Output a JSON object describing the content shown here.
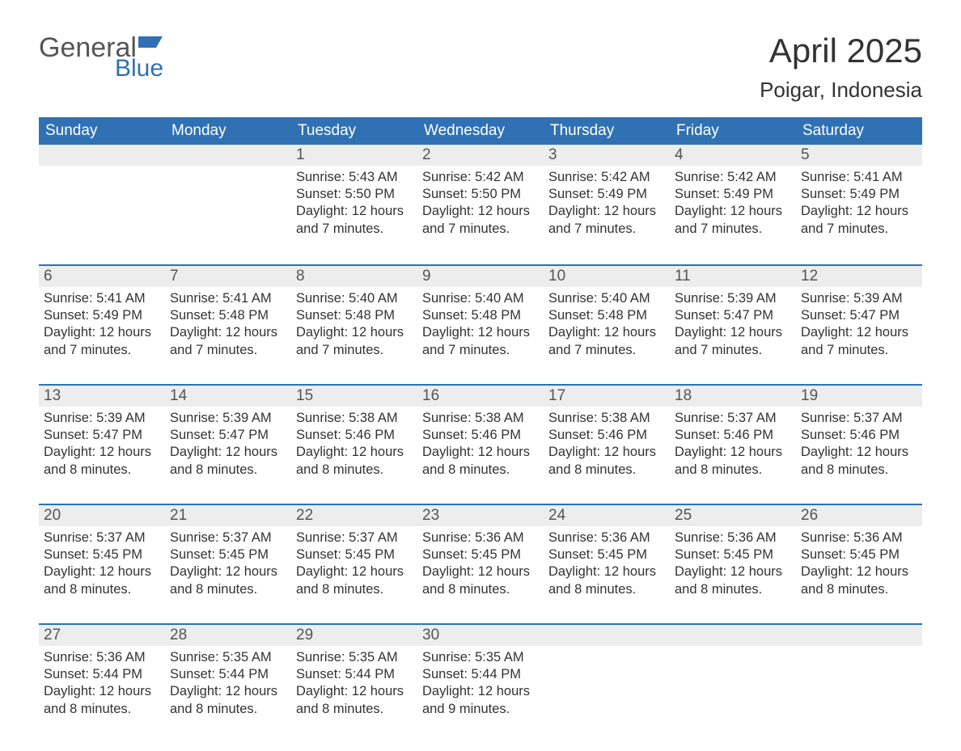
{
  "logo": {
    "word1": "General",
    "word2": "Blue"
  },
  "title": "April 2025",
  "location": "Poigar, Indonesia",
  "colors": {
    "header_bg": "#2f71b3",
    "header_text": "#ffffff",
    "daynum_bg": "#ededed",
    "border": "#2f71b3",
    "text": "#333333",
    "logo_gray": "#555555",
    "logo_blue": "#2f71b3"
  },
  "day_headers": [
    "Sunday",
    "Monday",
    "Tuesday",
    "Wednesday",
    "Thursday",
    "Friday",
    "Saturday"
  ],
  "labels": {
    "sunrise": "Sunrise:",
    "sunset": "Sunset:",
    "daylight": "Daylight:"
  },
  "weeks": [
    [
      null,
      null,
      {
        "n": "1",
        "sunrise": "5:43 AM",
        "sunset": "5:50 PM",
        "daylight": "12 hours and 7 minutes."
      },
      {
        "n": "2",
        "sunrise": "5:42 AM",
        "sunset": "5:50 PM",
        "daylight": "12 hours and 7 minutes."
      },
      {
        "n": "3",
        "sunrise": "5:42 AM",
        "sunset": "5:49 PM",
        "daylight": "12 hours and 7 minutes."
      },
      {
        "n": "4",
        "sunrise": "5:42 AM",
        "sunset": "5:49 PM",
        "daylight": "12 hours and 7 minutes."
      },
      {
        "n": "5",
        "sunrise": "5:41 AM",
        "sunset": "5:49 PM",
        "daylight": "12 hours and 7 minutes."
      }
    ],
    [
      {
        "n": "6",
        "sunrise": "5:41 AM",
        "sunset": "5:49 PM",
        "daylight": "12 hours and 7 minutes."
      },
      {
        "n": "7",
        "sunrise": "5:41 AM",
        "sunset": "5:48 PM",
        "daylight": "12 hours and 7 minutes."
      },
      {
        "n": "8",
        "sunrise": "5:40 AM",
        "sunset": "5:48 PM",
        "daylight": "12 hours and 7 minutes."
      },
      {
        "n": "9",
        "sunrise": "5:40 AM",
        "sunset": "5:48 PM",
        "daylight": "12 hours and 7 minutes."
      },
      {
        "n": "10",
        "sunrise": "5:40 AM",
        "sunset": "5:48 PM",
        "daylight": "12 hours and 7 minutes."
      },
      {
        "n": "11",
        "sunrise": "5:39 AM",
        "sunset": "5:47 PM",
        "daylight": "12 hours and 7 minutes."
      },
      {
        "n": "12",
        "sunrise": "5:39 AM",
        "sunset": "5:47 PM",
        "daylight": "12 hours and 7 minutes."
      }
    ],
    [
      {
        "n": "13",
        "sunrise": "5:39 AM",
        "sunset": "5:47 PM",
        "daylight": "12 hours and 8 minutes."
      },
      {
        "n": "14",
        "sunrise": "5:39 AM",
        "sunset": "5:47 PM",
        "daylight": "12 hours and 8 minutes."
      },
      {
        "n": "15",
        "sunrise": "5:38 AM",
        "sunset": "5:46 PM",
        "daylight": "12 hours and 8 minutes."
      },
      {
        "n": "16",
        "sunrise": "5:38 AM",
        "sunset": "5:46 PM",
        "daylight": "12 hours and 8 minutes."
      },
      {
        "n": "17",
        "sunrise": "5:38 AM",
        "sunset": "5:46 PM",
        "daylight": "12 hours and 8 minutes."
      },
      {
        "n": "18",
        "sunrise": "5:37 AM",
        "sunset": "5:46 PM",
        "daylight": "12 hours and 8 minutes."
      },
      {
        "n": "19",
        "sunrise": "5:37 AM",
        "sunset": "5:46 PM",
        "daylight": "12 hours and 8 minutes."
      }
    ],
    [
      {
        "n": "20",
        "sunrise": "5:37 AM",
        "sunset": "5:45 PM",
        "daylight": "12 hours and 8 minutes."
      },
      {
        "n": "21",
        "sunrise": "5:37 AM",
        "sunset": "5:45 PM",
        "daylight": "12 hours and 8 minutes."
      },
      {
        "n": "22",
        "sunrise": "5:37 AM",
        "sunset": "5:45 PM",
        "daylight": "12 hours and 8 minutes."
      },
      {
        "n": "23",
        "sunrise": "5:36 AM",
        "sunset": "5:45 PM",
        "daylight": "12 hours and 8 minutes."
      },
      {
        "n": "24",
        "sunrise": "5:36 AM",
        "sunset": "5:45 PM",
        "daylight": "12 hours and 8 minutes."
      },
      {
        "n": "25",
        "sunrise": "5:36 AM",
        "sunset": "5:45 PM",
        "daylight": "12 hours and 8 minutes."
      },
      {
        "n": "26",
        "sunrise": "5:36 AM",
        "sunset": "5:45 PM",
        "daylight": "12 hours and 8 minutes."
      }
    ],
    [
      {
        "n": "27",
        "sunrise": "5:36 AM",
        "sunset": "5:44 PM",
        "daylight": "12 hours and 8 minutes."
      },
      {
        "n": "28",
        "sunrise": "5:35 AM",
        "sunset": "5:44 PM",
        "daylight": "12 hours and 8 minutes."
      },
      {
        "n": "29",
        "sunrise": "5:35 AM",
        "sunset": "5:44 PM",
        "daylight": "12 hours and 8 minutes."
      },
      {
        "n": "30",
        "sunrise": "5:35 AM",
        "sunset": "5:44 PM",
        "daylight": "12 hours and 9 minutes."
      },
      null,
      null,
      null
    ]
  ]
}
